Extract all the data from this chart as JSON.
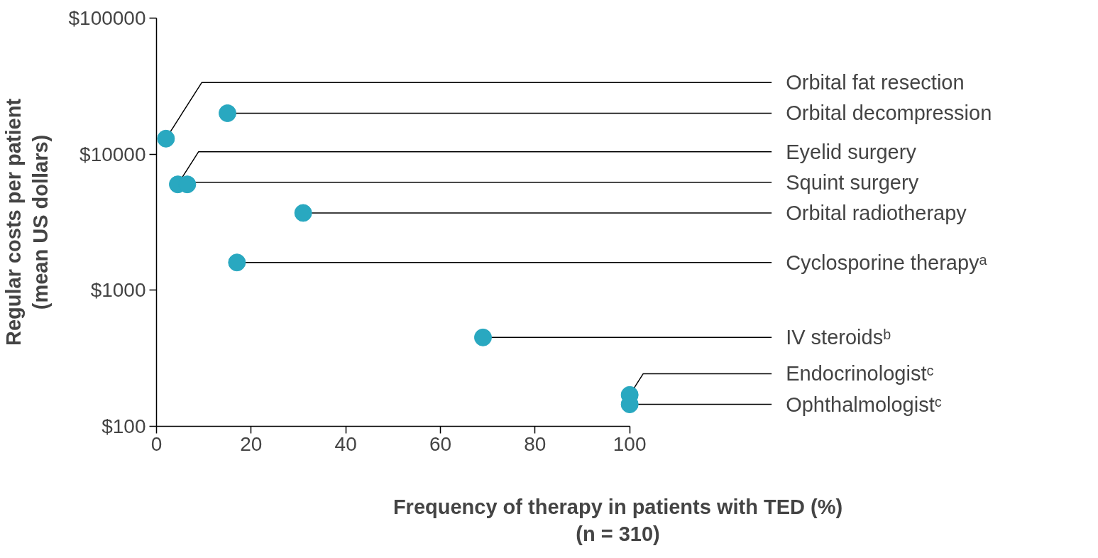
{
  "chart_data": {
    "type": "scatter",
    "xlabel": "Frequency of therapy in patients with TED (%)\n(n = 310)",
    "ylabel": "Regular costs per patient\n(mean US dollars)",
    "log": "y",
    "xlim": [
      0,
      100
    ],
    "xticks": [
      0,
      20,
      40,
      60,
      80,
      100
    ],
    "ylim": [
      100,
      100000
    ],
    "yticks": [
      {
        "value": 100,
        "label": "$100"
      },
      {
        "value": 1000,
        "label": "$1000"
      },
      {
        "value": 10000,
        "label": "$10000"
      },
      {
        "value": 100000,
        "label": "$100000"
      }
    ],
    "grid": false,
    "marker": "circle",
    "series": [
      {
        "name": "Orbital fat resection",
        "color": "#29a8c0",
        "x": [
          2
        ],
        "values": [
          13000
        ]
      },
      {
        "name": "Orbital decompression",
        "color": "#29a8c0",
        "x": [
          15
        ],
        "values": [
          20000
        ]
      },
      {
        "name": "Eyelid surgery",
        "color": "#29a8c0",
        "x": [
          4.5
        ],
        "values": [
          6000
        ]
      },
      {
        "name": "Squint surgery",
        "color": "#29a8c0",
        "x": [
          6.5
        ],
        "values": [
          6000
        ]
      },
      {
        "name": "Orbital radiotherapy",
        "color": "#29a8c0",
        "x": [
          31
        ],
        "values": [
          3700
        ]
      },
      {
        "name": "Cyclosporine therapyᵃ",
        "color": "#29a8c0",
        "x": [
          17
        ],
        "values": [
          1600
        ]
      },
      {
        "name": "IV steroidsᵇ",
        "color": "#29a8c0",
        "x": [
          69
        ],
        "values": [
          450
        ]
      },
      {
        "name": "Endocrinologistᶜ",
        "color": "#29a8c0",
        "x": [
          100
        ],
        "values": [
          170
        ]
      },
      {
        "name": "Ophthalmologistᶜ",
        "color": "#29a8c0",
        "x": [
          100
        ],
        "values": [
          145
        ]
      }
    ]
  }
}
